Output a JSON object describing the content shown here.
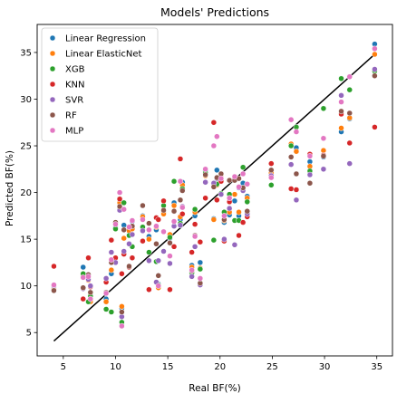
{
  "chart_data": {
    "type": "scatter",
    "title": "Models' Predictions",
    "xlabel": "Real BF(%)",
    "ylabel": "Predicted BF(%)",
    "xlim": [
      2.5,
      36.5
    ],
    "ylim": [
      2.5,
      38.0
    ],
    "xticks": [
      5,
      10,
      15,
      20,
      25,
      30,
      35
    ],
    "yticks": [
      5,
      10,
      15,
      20,
      25,
      30,
      35
    ],
    "grid": false,
    "legend_position": "top-left",
    "reference_line": {
      "x": [
        4.1,
        34.8
      ],
      "y": [
        4.1,
        34.8
      ],
      "color": "#000000"
    },
    "x": [
      4.1,
      6.9,
      7.4,
      7.6,
      9.1,
      9.6,
      10.0,
      10.4,
      10.6,
      10.8,
      11.3,
      11.6,
      12.6,
      13.2,
      13.9,
      14.1,
      14.6,
      15.2,
      15.6,
      16.2,
      16.4,
      17.3,
      17.6,
      18.1,
      18.6,
      19.4,
      19.7,
      20.1,
      20.4,
      20.9,
      21.4,
      21.8,
      22.2,
      22.6,
      24.9,
      26.8,
      27.3,
      28.6,
      29.9,
      31.6,
      32.4,
      34.8
    ],
    "series": [
      {
        "name": "Linear Regression",
        "color": "#1f77b4",
        "values": [
          9.7,
          12.0,
          10.9,
          8.5,
          8.6,
          11.3,
          16.2,
          19.3,
          7.6,
          16.5,
          15.9,
          16.9,
          17.5,
          15.3,
          16.0,
          10.2,
          17.8,
          15.1,
          18.9,
          17.1,
          21.1,
          12.2,
          17.5,
          12.5,
          22.3,
          17.2,
          22.4,
          22.0,
          16.8,
          17.6,
          19.1,
          17.5,
          21.0,
          19.6,
          22.0,
          25.1,
          24.8,
          23.3,
          23.8,
          26.5,
          27.9,
          35.9
        ]
      },
      {
        "name": "Linear ElasticNet",
        "color": "#ff7f0e",
        "values": [
          9.6,
          11.1,
          10.6,
          8.3,
          8.3,
          11.7,
          16.7,
          18.9,
          7.8,
          15.1,
          15.9,
          16.1,
          17.4,
          15.0,
          16.3,
          9.8,
          17.7,
          15.5,
          18.6,
          17.4,
          20.8,
          12.0,
          17.9,
          11.9,
          21.8,
          17.1,
          20.8,
          21.9,
          17.0,
          17.9,
          19.8,
          17.9,
          20.5,
          19.4,
          22.1,
          25.2,
          24.4,
          22.8,
          24.5,
          26.9,
          28.0,
          34.8
        ]
      },
      {
        "name": "XGB",
        "color": "#2ca02c",
        "values": [
          10.0,
          11.3,
          8.3,
          8.9,
          7.5,
          7.2,
          16.1,
          18.4,
          6.1,
          18.9,
          15.4,
          14.2,
          16.3,
          13.6,
          12.6,
          10.1,
          18.6,
          15.2,
          21.2,
          16.7,
          20.4,
          11.4,
          18.2,
          11.8,
          22.1,
          14.9,
          20.9,
          19.9,
          17.9,
          19.8,
          17.0,
          17.0,
          22.7,
          19.0,
          20.8,
          25.0,
          27.0,
          22.3,
          29.0,
          32.2,
          31.0,
          33.0
        ]
      },
      {
        "name": "KNN",
        "color": "#d62728",
        "values": [
          12.1,
          8.6,
          13.0,
          9.9,
          10.4,
          14.9,
          13.0,
          19.3,
          11.3,
          13.4,
          12.0,
          13.0,
          14.8,
          9.6,
          17.3,
          17.1,
          19.1,
          9.6,
          14.2,
          23.6,
          17.7,
          13.6,
          16.6,
          14.7,
          19.4,
          27.5,
          19.2,
          21.2,
          14.8,
          19.0,
          21.4,
          15.4,
          16.8,
          17.4,
          23.1,
          20.4,
          20.3,
          24.1,
          24.0,
          28.4,
          25.3,
          27.0
        ]
      },
      {
        "name": "SVR",
        "color": "#9467bd",
        "values": [
          10.0,
          9.7,
          10.7,
          10.0,
          10.8,
          13.6,
          12.5,
          18.1,
          6.7,
          13.7,
          14.5,
          15.5,
          15.9,
          12.7,
          10.4,
          12.7,
          13.7,
          12.4,
          16.4,
          16.5,
          18.5,
          11.0,
          14.2,
          10.1,
          21.1,
          21.0,
          21.5,
          19.8,
          15.0,
          18.3,
          14.4,
          20.5,
          20.2,
          17.7,
          21.8,
          23.0,
          19.2,
          21.9,
          22.5,
          30.4,
          23.1,
          33.2
        ]
      },
      {
        "name": "RF",
        "color": "#8c564b",
        "values": [
          9.5,
          9.8,
          11.2,
          9.3,
          9.3,
          12.5,
          16.8,
          18.5,
          7.2,
          16.0,
          12.1,
          16.4,
          18.6,
          16.7,
          14.5,
          11.1,
          18.1,
          14.6,
          18.0,
          19.2,
          20.2,
          11.6,
          15.4,
          10.3,
          21.9,
          20.6,
          21.6,
          22.0,
          17.1,
          21.3,
          21.3,
          21.5,
          20.5,
          18.0,
          22.4,
          23.8,
          22.0,
          21.0,
          23.9,
          28.7,
          28.5,
          32.5
        ]
      },
      {
        "name": "MLP",
        "color": "#e377c2",
        "values": [
          10.1,
          10.9,
          11.0,
          8.6,
          9.2,
          12.8,
          16.6,
          20.0,
          5.7,
          18.2,
          16.3,
          17.0,
          17.1,
          16.0,
          16.4,
          10.0,
          15.8,
          13.2,
          16.9,
          21.2,
          18.4,
          11.7,
          15.3,
          10.8,
          22.5,
          25.0,
          26.0,
          21.5,
          17.5,
          19.4,
          21.7,
          20.6,
          22.0,
          20.9,
          21.6,
          27.8,
          26.5,
          23.9,
          25.8,
          29.7,
          32.4,
          35.4
        ]
      }
    ]
  }
}
